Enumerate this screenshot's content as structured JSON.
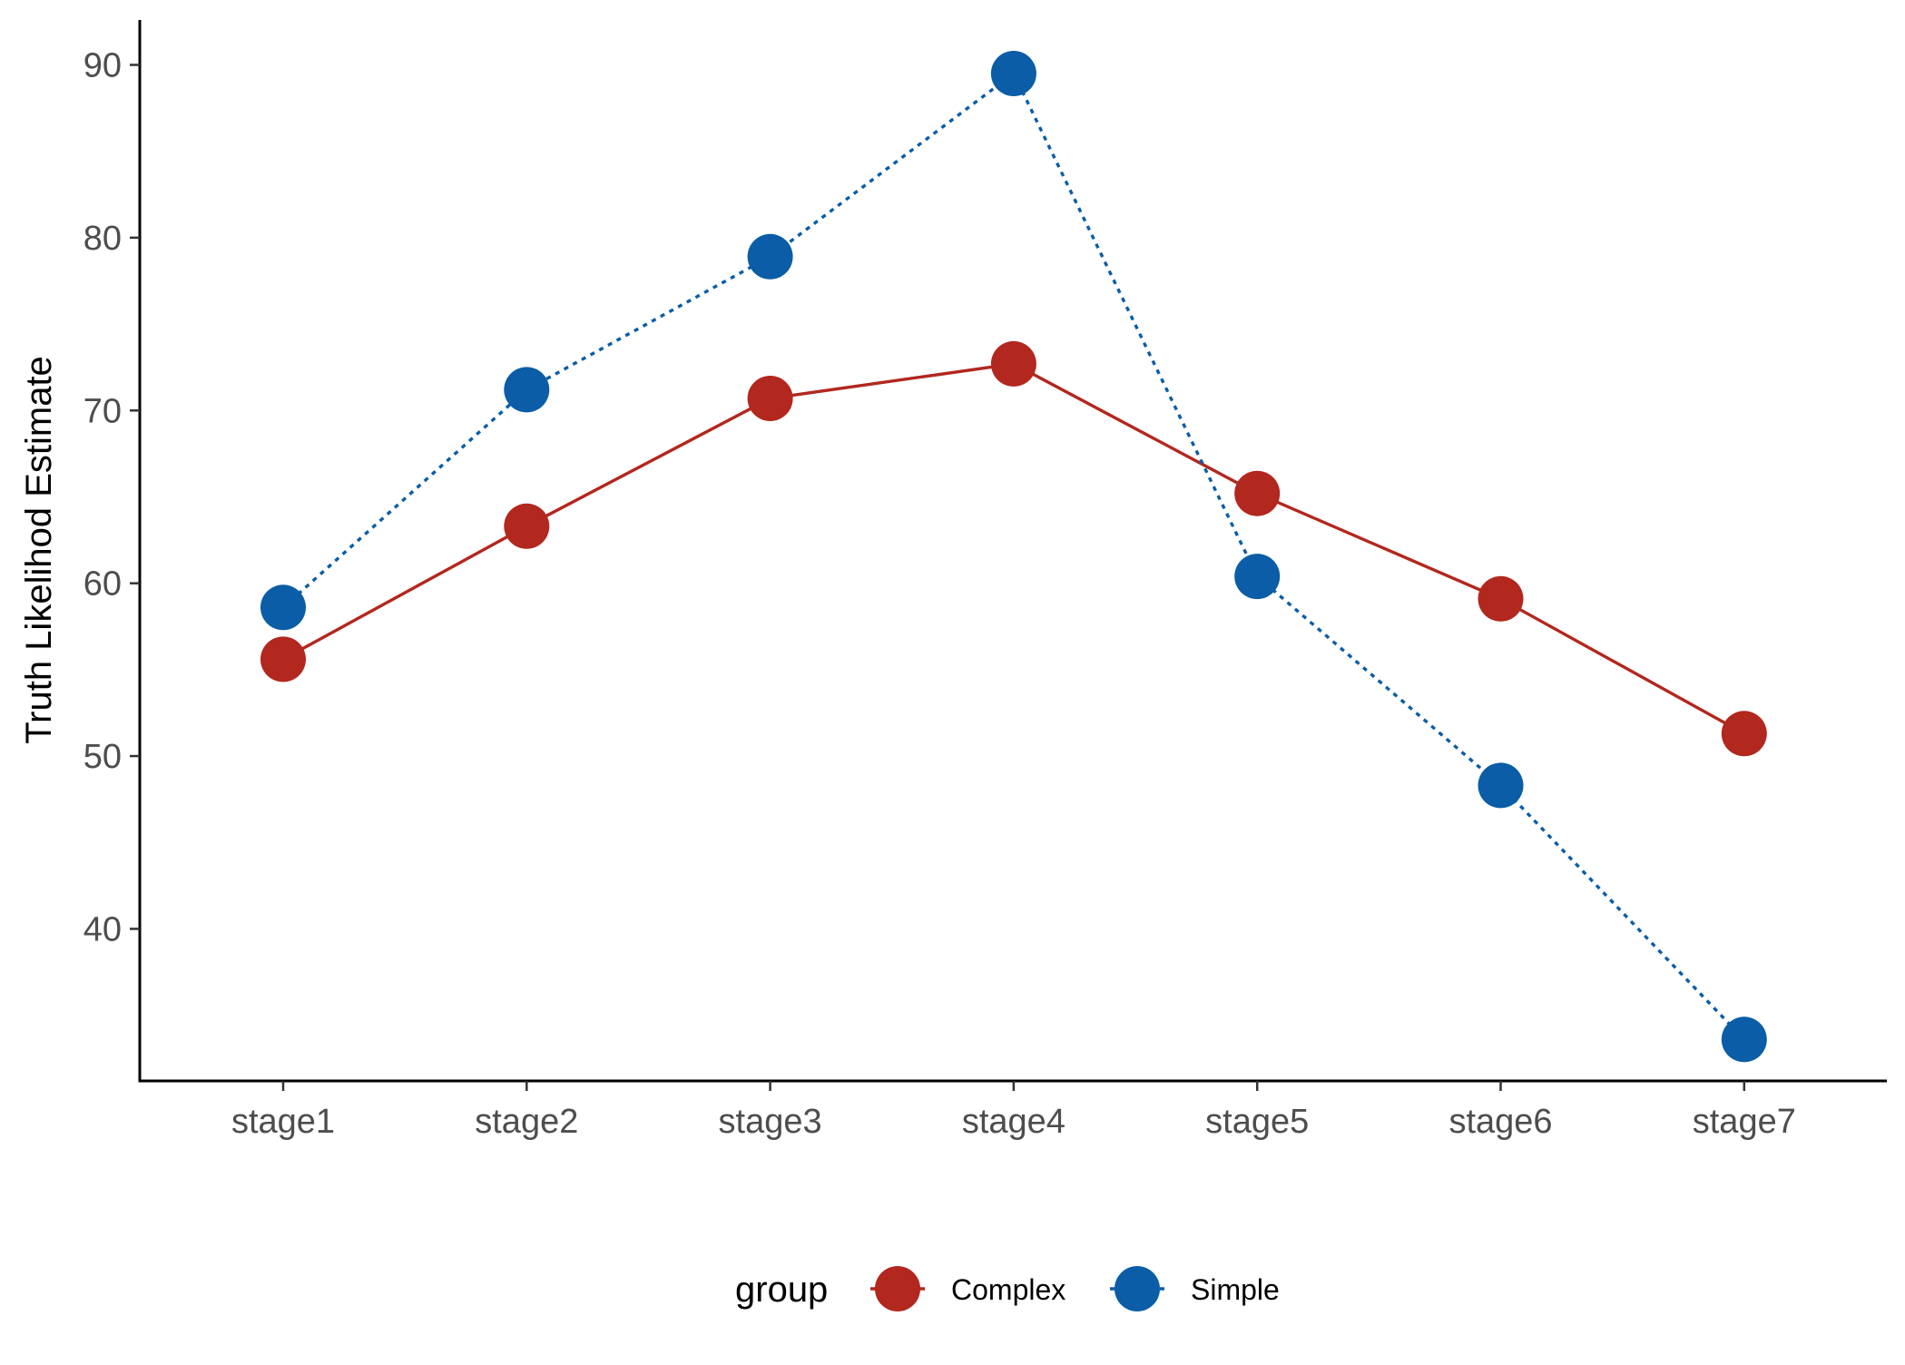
{
  "chart_data": {
    "type": "line",
    "categories": [
      "stage1",
      "stage2",
      "stage3",
      "stage4",
      "stage5",
      "stage6",
      "stage7"
    ],
    "series": [
      {
        "name": "Complex",
        "values": [
          55.6,
          63.3,
          70.7,
          72.7,
          65.2,
          59.1,
          51.3
        ],
        "color": "#B2271E",
        "line_style": "solid"
      },
      {
        "name": "Simple",
        "values": [
          58.6,
          71.2,
          78.9,
          89.5,
          60.4,
          48.3,
          33.6
        ],
        "color": "#0A5DA6",
        "line_style": "dotted"
      }
    ],
    "xlabel": "",
    "ylabel": "Truth Likelihod Estimate",
    "ylim": [
      31.2,
      92.6
    ],
    "yticks": [
      40,
      50,
      60,
      70,
      80,
      90
    ],
    "grid": false,
    "legend": {
      "title": "group",
      "placement": "bottom"
    }
  }
}
